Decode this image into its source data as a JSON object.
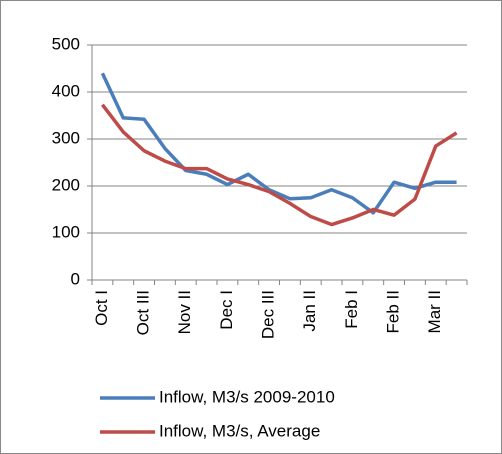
{
  "chart_data": {
    "type": "line",
    "categories": [
      "Oct I",
      null,
      "Oct III",
      null,
      "Nov II",
      null,
      "Dec I",
      null,
      "Dec III",
      null,
      "Jan II",
      null,
      "Feb I",
      null,
      "Feb II",
      null,
      "Mar II",
      null
    ],
    "series": [
      {
        "name": "Inflow, M3/s 2009-2010",
        "color": "#4a7ebb",
        "values": [
          440,
          345,
          342,
          280,
          233,
          225,
          203,
          225,
          192,
          173,
          175,
          192,
          175,
          143,
          208,
          195,
          208,
          208
        ]
      },
      {
        "name": "Inflow, M3/s, Average",
        "color": "#be4b48",
        "values": [
          373,
          315,
          275,
          253,
          237,
          237,
          215,
          203,
          188,
          163,
          135,
          118,
          132,
          150,
          138,
          172,
          285,
          313
        ]
      }
    ],
    "ylim": [
      0,
      500
    ],
    "yticks": [
      0,
      100,
      200,
      300,
      400,
      500
    ],
    "grid": true
  }
}
